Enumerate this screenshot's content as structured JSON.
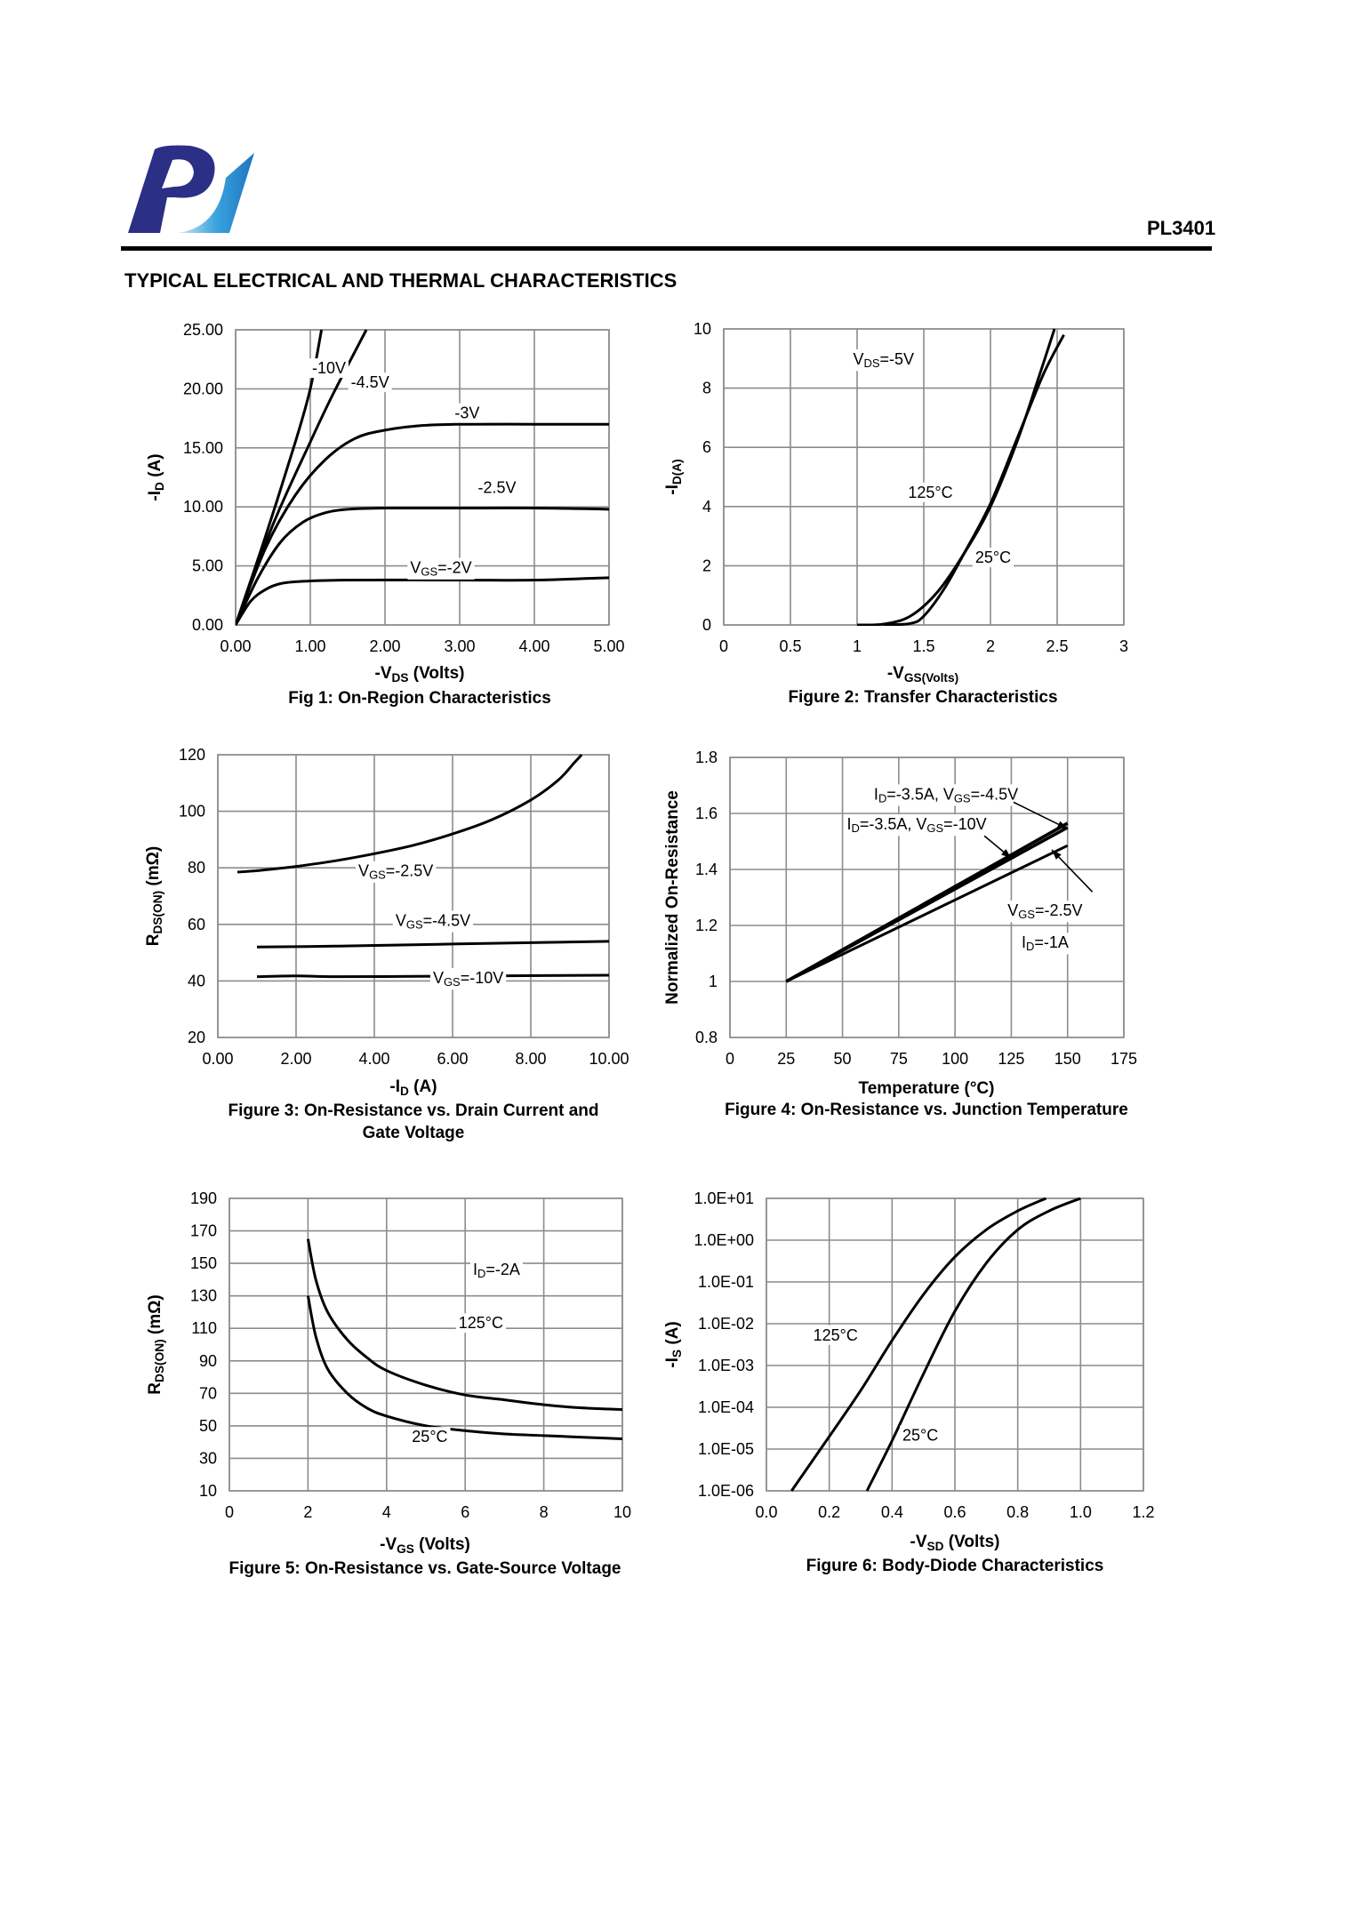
{
  "header": {
    "part_number": "PL3401",
    "section_title": "TYPICAL ELECTRICAL AND THERMAL CHARACTERISTICS"
  },
  "chart_data": [
    {
      "type": "line",
      "title": "Fig 1: On-Region Characteristics",
      "xlabel": "-V_DS (Volts)",
      "ylabel": "-I_D (A)",
      "xlim": [
        0,
        5
      ],
      "ylim": [
        0,
        25
      ],
      "x_ticks": [
        "0.00",
        "1.00",
        "2.00",
        "3.00",
        "4.00",
        "5.00"
      ],
      "y_ticks": [
        "0.00",
        "5.00",
        "10.00",
        "15.00",
        "20.00",
        "25.00"
      ],
      "series": [
        {
          "name": "-10V",
          "label": "-10V",
          "points": [
            [
              0,
              0
            ],
            [
              0.4,
              7.5
            ],
            [
              0.8,
              15.5
            ],
            [
              1.0,
              20
            ],
            [
              1.15,
              25
            ]
          ]
        },
        {
          "name": "-4.5V",
          "label": "-4.5V",
          "points": [
            [
              0,
              0
            ],
            [
              0.5,
              8.5
            ],
            [
              1.0,
              15.5
            ],
            [
              1.3,
              19.5
            ],
            [
              1.75,
              25
            ]
          ]
        },
        {
          "name": "-3V",
          "label": "-3V",
          "points": [
            [
              0,
              0
            ],
            [
              0.4,
              6.5
            ],
            [
              0.8,
              11
            ],
            [
              1.2,
              14
            ],
            [
              1.6,
              15.8
            ],
            [
              2.0,
              16.5
            ],
            [
              2.5,
              16.9
            ],
            [
              3.0,
              17
            ],
            [
              4.0,
              17
            ],
            [
              5.0,
              17
            ]
          ]
        },
        {
          "name": "-2.5V",
          "label": "-2.5V",
          "points": [
            [
              0,
              0
            ],
            [
              0.3,
              4
            ],
            [
              0.6,
              7
            ],
            [
              0.9,
              8.7
            ],
            [
              1.2,
              9.5
            ],
            [
              1.5,
              9.8
            ],
            [
              2.0,
              9.9
            ],
            [
              3.0,
              9.9
            ],
            [
              4.0,
              9.9
            ],
            [
              5.0,
              9.8
            ]
          ]
        },
        {
          "name": "VGS=-2V",
          "label": "V_GS=-2V",
          "points": [
            [
              0,
              0
            ],
            [
              0.2,
              2
            ],
            [
              0.4,
              3
            ],
            [
              0.6,
              3.5
            ],
            [
              0.9,
              3.7
            ],
            [
              1.5,
              3.8
            ],
            [
              3.0,
              3.8
            ],
            [
              4.0,
              3.8
            ],
            [
              5.0,
              4.0
            ]
          ]
        }
      ]
    },
    {
      "type": "line",
      "title": "Figure 2: Transfer Characteristics",
      "xlabel": "-V_GS(Volts)",
      "ylabel": "-I_D(A)",
      "xlim": [
        0,
        3
      ],
      "ylim": [
        0,
        10
      ],
      "x_ticks": [
        "0",
        "0.5",
        "1",
        "1.5",
        "2",
        "2.5",
        "3"
      ],
      "y_ticks": [
        "0",
        "2",
        "4",
        "6",
        "8",
        "10"
      ],
      "annotation": "V_DS=-5V",
      "series": [
        {
          "name": "125°C",
          "label": "125°C",
          "points": [
            [
              1.0,
              0
            ],
            [
              1.2,
              0.03
            ],
            [
              1.4,
              0.3
            ],
            [
              1.6,
              1.1
            ],
            [
              1.8,
              2.4
            ],
            [
              2.0,
              4.0
            ],
            [
              2.2,
              6.2
            ],
            [
              2.35,
              8.2
            ],
            [
              2.48,
              10
            ]
          ]
        },
        {
          "name": "25°C",
          "label": "25°C",
          "points": [
            [
              1.2,
              0
            ],
            [
              1.4,
              0.05
            ],
            [
              1.5,
              0.3
            ],
            [
              1.65,
              1.2
            ],
            [
              1.8,
              2.4
            ],
            [
              2.0,
              4.1
            ],
            [
              2.2,
              6.3
            ],
            [
              2.4,
              8.5
            ],
            [
              2.55,
              9.8
            ]
          ]
        }
      ]
    },
    {
      "type": "line",
      "title": "Figure 3: On-Resistance vs. Drain Current and Gate Voltage",
      "xlabel": "-I_D (A)",
      "ylabel": "R_DS(ON) (mΩ)",
      "xlim": [
        0,
        10
      ],
      "ylim": [
        20,
        120
      ],
      "x_ticks": [
        "0.00",
        "2.00",
        "4.00",
        "6.00",
        "8.00",
        "10.00"
      ],
      "y_ticks": [
        "20",
        "40",
        "60",
        "80",
        "100",
        "120"
      ],
      "series": [
        {
          "name": "VGS=-2.5V",
          "label": "V_GS=-2.5V",
          "points": [
            [
              0.5,
              78.5
            ],
            [
              1.0,
              79
            ],
            [
              2.0,
              80.5
            ],
            [
              3.0,
              82.5
            ],
            [
              4.0,
              85
            ],
            [
              5.0,
              88
            ],
            [
              6.0,
              92
            ],
            [
              7.0,
              97
            ],
            [
              8.0,
              104
            ],
            [
              8.7,
              111
            ],
            [
              9.1,
              117
            ],
            [
              9.3,
              120
            ]
          ]
        },
        {
          "name": "VGS=-4.5V",
          "label": "V_GS=-4.5V",
          "points": [
            [
              1.0,
              52
            ],
            [
              3.0,
              52.3
            ],
            [
              5.0,
              52.8
            ],
            [
              7.0,
              53.3
            ],
            [
              10.0,
              54
            ]
          ]
        },
        {
          "name": "VGS=-10V",
          "label": "V_GS=-10V",
          "points": [
            [
              1.0,
              41.5
            ],
            [
              2.0,
              41.8
            ],
            [
              3.0,
              41.5
            ],
            [
              5.0,
              41.6
            ],
            [
              7.0,
              41.8
            ],
            [
              10.0,
              42
            ]
          ]
        }
      ]
    },
    {
      "type": "line",
      "title": "Figure 4: On-Resistance vs. Junction Temperature",
      "xlabel": "Temperature (°C)",
      "ylabel": "Normalized On-Resistance",
      "xlim": [
        0,
        175
      ],
      "ylim": [
        0.8,
        1.8
      ],
      "x_ticks": [
        "0",
        "25",
        "50",
        "75",
        "100",
        "125",
        "150",
        "175"
      ],
      "y_ticks": [
        "0.8",
        "1",
        "1.2",
        "1.4",
        "1.6",
        "1.8"
      ],
      "annotations": [
        "I_D=-3.5A, V_GS=-4.5V",
        "I_D=-3.5A, V_GS=-10V",
        "V_GS=-2.5V",
        "I_D=-1A"
      ],
      "series": [
        {
          "name": "ID=-3.5A, VGS=-4.5V",
          "points": [
            [
              25,
              1.0
            ],
            [
              150,
              1.565
            ]
          ]
        },
        {
          "name": "ID=-3.5A, VGS=-10V",
          "points": [
            [
              25,
              1.0
            ],
            [
              150,
              1.55
            ]
          ]
        },
        {
          "name": "VGS=-2.5V, ID=-1A",
          "points": [
            [
              25,
              1.0
            ],
            [
              150,
              1.485
            ]
          ]
        }
      ]
    },
    {
      "type": "line",
      "title": "Figure 5: On-Resistance vs. Gate-Source Voltage",
      "xlabel": "-V_GS (Volts)",
      "ylabel": "R_DS(ON) (mΩ)",
      "xlim": [
        0,
        10
      ],
      "ylim": [
        10,
        190
      ],
      "x_ticks": [
        "0",
        "2",
        "4",
        "6",
        "8",
        "10"
      ],
      "y_ticks": [
        "10",
        "30",
        "50",
        "70",
        "90",
        "110",
        "130",
        "150",
        "170",
        "190"
      ],
      "annotation": "I_D=-2A",
      "series": [
        {
          "name": "125°C",
          "label": "125°C",
          "points": [
            [
              2.0,
              165
            ],
            [
              2.2,
              140
            ],
            [
              2.5,
              120
            ],
            [
              3.0,
              103
            ],
            [
              3.5,
              92
            ],
            [
              4.0,
              84
            ],
            [
              5.0,
              75
            ],
            [
              6.0,
              69
            ],
            [
              7.0,
              66
            ],
            [
              8.0,
              63
            ],
            [
              9.0,
              61
            ],
            [
              10.0,
              60
            ]
          ]
        },
        {
          "name": "25°C",
          "label": "25°C",
          "points": [
            [
              2.0,
              130
            ],
            [
              2.2,
              105
            ],
            [
              2.5,
              85
            ],
            [
              3.0,
              70
            ],
            [
              3.5,
              61
            ],
            [
              4.0,
              56
            ],
            [
              5.0,
              50
            ],
            [
              6.0,
              47
            ],
            [
              7.0,
              45
            ],
            [
              8.0,
              44
            ],
            [
              9.0,
              43
            ],
            [
              10.0,
              42
            ]
          ]
        }
      ]
    },
    {
      "type": "line",
      "title": "Figure 6: Body-Diode Characteristics",
      "xlabel": "-V_SD (Volts)",
      "ylabel": "-I_S (A)",
      "xlim": [
        0,
        1.2
      ],
      "ylim_log10": [
        -6,
        1
      ],
      "x_ticks": [
        "0.0",
        "0.2",
        "0.4",
        "0.6",
        "0.8",
        "1.0",
        "1.2"
      ],
      "y_ticks": [
        "1.0E-06",
        "1.0E-05",
        "1.0E-04",
        "1.0E-03",
        "1.0E-02",
        "1.0E-01",
        "1.0E+00",
        "1.0E+01"
      ],
      "series": [
        {
          "name": "125°C",
          "label": "125°C",
          "log10_points": [
            [
              0.08,
              -6
            ],
            [
              0.2,
              -4.7
            ],
            [
              0.3,
              -3.6
            ],
            [
              0.4,
              -2.4
            ],
            [
              0.5,
              -1.3
            ],
            [
              0.6,
              -0.4
            ],
            [
              0.7,
              0.25
            ],
            [
              0.8,
              0.7
            ],
            [
              0.89,
              1.0
            ]
          ]
        },
        {
          "name": "25°C",
          "label": "25°C",
          "log10_points": [
            [
              0.32,
              -6
            ],
            [
              0.4,
              -4.8
            ],
            [
              0.5,
              -3.2
            ],
            [
              0.6,
              -1.7
            ],
            [
              0.7,
              -0.55
            ],
            [
              0.8,
              0.25
            ],
            [
              0.9,
              0.7
            ],
            [
              1.0,
              1.0
            ]
          ]
        }
      ]
    }
  ]
}
